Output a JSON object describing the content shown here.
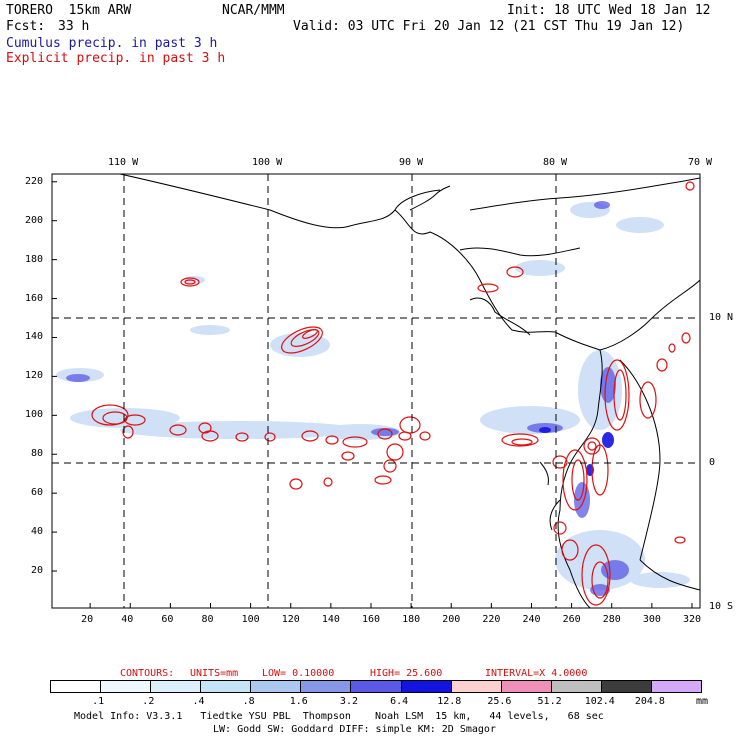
{
  "header": {
    "model": "TORERO  15km ARW",
    "org": "NCAR/MMM",
    "init": "Init: 18 UTC Wed 18 Jan 12",
    "fcst_label": "Fcst:",
    "fcst_value": "33 h",
    "valid": "Valid: 03 UTC Fri 20 Jan 12 (21 CST Thu 19 Jan 12)",
    "legend_cumulus": "Cumulus precip. in past 3 h",
    "legend_explicit": "Explicit precip. in past 3 h"
  },
  "map": {
    "lon_labels": [
      "110 W",
      "100 W",
      "90 W",
      "80 W",
      "70 W"
    ],
    "lat_labels": [
      "10 N",
      "0",
      "10 S"
    ],
    "x_ticks": [
      20,
      40,
      60,
      80,
      100,
      120,
      140,
      160,
      180,
      200,
      220,
      240,
      260,
      280,
      300,
      320
    ],
    "y_ticks": [
      20,
      40,
      60,
      80,
      100,
      120,
      140,
      160,
      180,
      200,
      220
    ],
    "colors": {
      "cumulus": "#3344dd",
      "explicit": "#dd1111",
      "coast": "#000000"
    }
  },
  "contour_info": {
    "label": "CONTOURS:",
    "units": "UNITS=mm",
    "low": "LOW= 0.10000",
    "high": "HIGH= 25.600",
    "interval": "INTERVAL=X 4.0000"
  },
  "colorbar": {
    "labels": [
      ".1",
      ".2",
      ".4",
      ".8",
      "1.6",
      "3.2",
      "6.4",
      "12.8",
      "25.6",
      "51.2",
      "102.4",
      "204.8"
    ],
    "unit": "mm",
    "colors": [
      "#ffffff",
      "#f0f8ff",
      "#dcf0fc",
      "#c4e4f8",
      "#aac8f0",
      "#8898e8",
      "#5a5ae6",
      "#1414e0",
      "#ffd0d0",
      "#f090b8",
      "#bfbfbf",
      "#3c3c3c",
      "#d6a8f8"
    ]
  },
  "footer": {
    "line1": "Model Info: V3.3.1   Tiedtke YSU PBL  Thompson    Noah LSM  15 km,   44 levels,   68 sec",
    "line2": "LW: Godd SW: Goddard DIFF: simple KM: 2D Smagor"
  }
}
